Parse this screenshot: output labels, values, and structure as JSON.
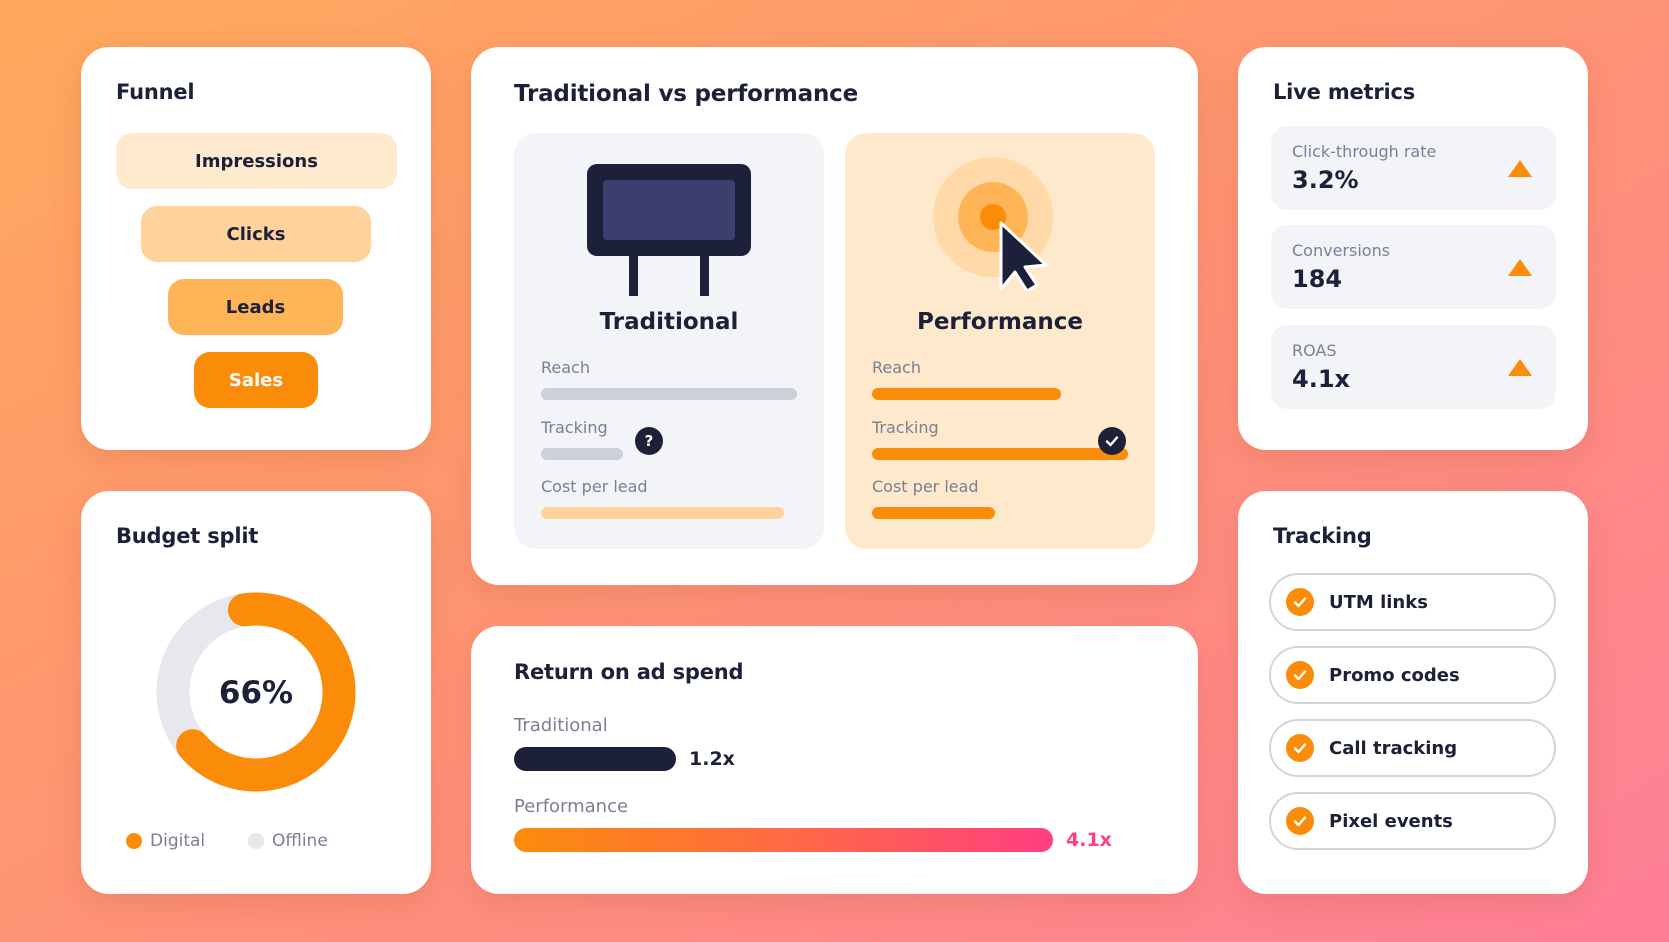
{
  "funnel": {
    "title": "Funnel",
    "steps": [
      {
        "label": "Impressions",
        "color": "#ffe9cf"
      },
      {
        "label": "Clicks",
        "color": "#ffd39b"
      },
      {
        "label": "Leads",
        "color": "#ffb458"
      },
      {
        "label": "Sales",
        "color": "#fb8c0a"
      }
    ]
  },
  "comparison": {
    "title": "Traditional vs performance",
    "traditional": {
      "name": "Traditional",
      "icon": "billboard-icon",
      "reach_label": "Reach",
      "reach_level": 1.0,
      "tracking_label": "Tracking",
      "tracking_level": 0.32,
      "tracking_badge": "?",
      "cpl_label": "Cost per lead",
      "cpl_level": 0.95
    },
    "performance": {
      "name": "Performance",
      "icon": "cursor-target-icon",
      "reach_label": "Reach",
      "reach_level": 0.74,
      "tracking_label": "Tracking",
      "tracking_level": 1.0,
      "cpl_label": "Cost per lead",
      "cpl_level": 0.48
    }
  },
  "live_metrics": {
    "title": "Live metrics",
    "items": [
      {
        "name": "Click-through rate",
        "value": "3.2%",
        "trend": "up"
      },
      {
        "name": "Conversions",
        "value": "184",
        "trend": "up"
      },
      {
        "name": "ROAS",
        "value": "4.1x",
        "trend": "up"
      }
    ]
  },
  "budget": {
    "title": "Budget split",
    "percent_label": "66%",
    "digital_share": 0.66,
    "legend": [
      {
        "label": "Digital",
        "color": "#fb8c0a"
      },
      {
        "label": "Offline",
        "color": "#e7e8ee"
      }
    ]
  },
  "roas": {
    "title": "Return on ad spend",
    "traditional_label": "Traditional",
    "traditional_value": "1.2x",
    "performance_label": "Performance",
    "performance_value": "4.1x"
  },
  "tracking": {
    "title": "Tracking",
    "items": [
      "UTM links",
      "Promo codes",
      "Call tracking",
      "Pixel events"
    ]
  },
  "colors": {
    "accent": "#fb8c0a",
    "navy": "#1c2038",
    "pink": "#ff3f80"
  }
}
